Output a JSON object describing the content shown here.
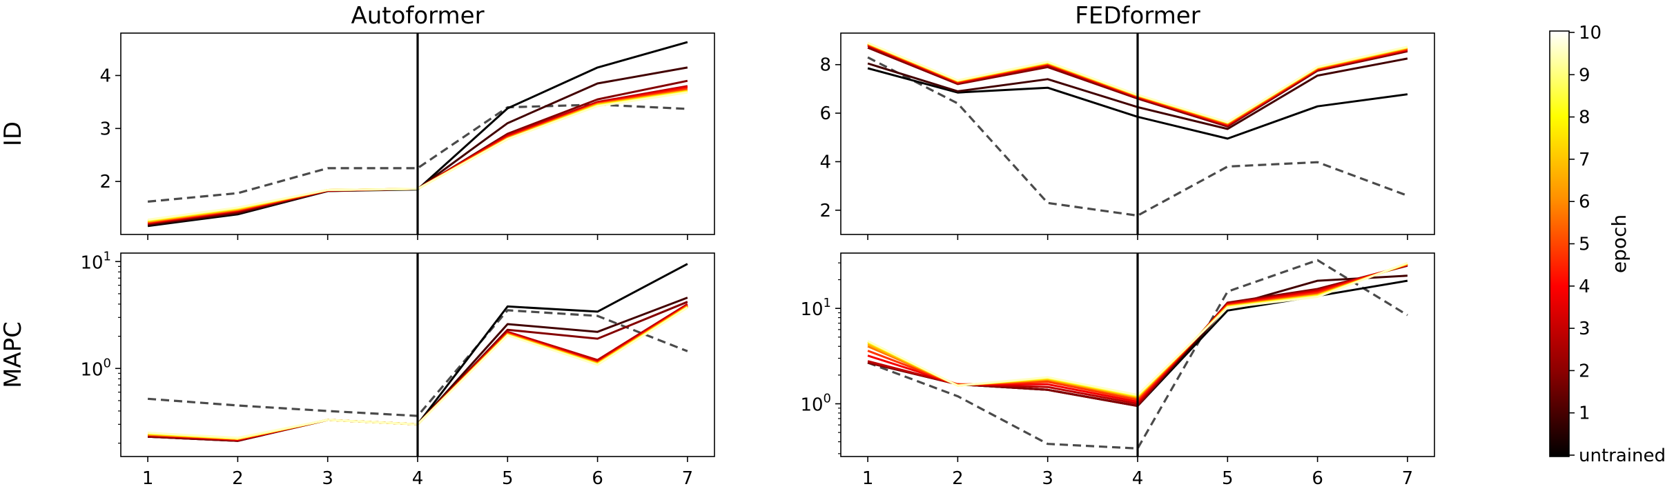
{
  "figure": {
    "colorbar": {
      "label": "epoch",
      "ticks": [
        "untrained",
        "1",
        "2",
        "3",
        "4",
        "5",
        "6",
        "7",
        "8",
        "9",
        "10"
      ],
      "colors": [
        "#000000",
        "#8b0000",
        "#ff0000",
        "#ff8c00",
        "#ffff00",
        "#ffffff"
      ]
    }
  },
  "chart_data": [
    {
      "type": "line",
      "title": "Autoformer",
      "ylabel": "ID",
      "x": [
        1,
        2,
        3,
        4,
        5,
        6,
        7
      ],
      "ylim": [
        1.0,
        4.8
      ],
      "yticks": [
        2,
        3,
        4
      ],
      "vline_x": 4,
      "series": [
        {
          "epoch": 0,
          "values": [
            1.16,
            1.38,
            1.82,
            1.85,
            3.38,
            4.15,
            4.63
          ]
        },
        {
          "epoch": 1,
          "values": [
            1.18,
            1.4,
            1.82,
            1.86,
            3.1,
            3.85,
            4.15
          ]
        },
        {
          "epoch": 2,
          "values": [
            1.2,
            1.42,
            1.83,
            1.86,
            2.9,
            3.55,
            3.9
          ]
        },
        {
          "epoch": 3,
          "values": [
            1.21,
            1.44,
            1.83,
            1.86,
            2.87,
            3.5,
            3.8
          ]
        },
        {
          "epoch": 4,
          "values": [
            1.22,
            1.45,
            1.83,
            1.86,
            2.85,
            3.48,
            3.78
          ]
        },
        {
          "epoch": 5,
          "values": [
            1.23,
            1.46,
            1.84,
            1.86,
            2.83,
            3.47,
            3.75
          ]
        },
        {
          "epoch": 6,
          "values": [
            1.24,
            1.47,
            1.84,
            1.86,
            2.82,
            3.46,
            3.72
          ]
        },
        {
          "epoch": 7,
          "values": [
            1.25,
            1.48,
            1.84,
            1.86,
            2.81,
            3.45,
            3.71
          ]
        },
        {
          "epoch": 8,
          "values": [
            1.26,
            1.49,
            1.84,
            1.86,
            2.8,
            3.44,
            3.7
          ]
        },
        {
          "epoch": 9,
          "values": [
            1.27,
            1.5,
            1.84,
            1.86,
            2.8,
            3.43,
            3.69
          ]
        },
        {
          "epoch": 10,
          "values": [
            1.28,
            1.51,
            1.84,
            1.86,
            2.8,
            3.42,
            3.68
          ]
        },
        {
          "epoch": "baseline",
          "dashed": true,
          "values": [
            1.62,
            1.78,
            2.25,
            2.25,
            3.4,
            3.45,
            3.37
          ]
        }
      ]
    },
    {
      "type": "line",
      "title": "FEDformer",
      "ylabel": "",
      "x": [
        1,
        2,
        3,
        4,
        5,
        6,
        7
      ],
      "ylim": [
        1.0,
        9.3
      ],
      "yticks": [
        2,
        4,
        6,
        8
      ],
      "vline_x": 4,
      "series": [
        {
          "epoch": 0,
          "values": [
            7.85,
            6.85,
            7.05,
            5.85,
            4.95,
            6.28,
            6.78
          ]
        },
        {
          "epoch": 1,
          "values": [
            8.05,
            6.9,
            7.4,
            6.25,
            5.35,
            7.55,
            8.25
          ]
        },
        {
          "epoch": 2,
          "values": [
            8.7,
            7.2,
            7.9,
            6.6,
            5.45,
            7.75,
            8.55
          ]
        },
        {
          "epoch": 3,
          "values": [
            8.78,
            7.25,
            7.98,
            6.65,
            5.5,
            7.8,
            8.6
          ]
        },
        {
          "epoch": 4,
          "values": [
            8.82,
            7.28,
            8.02,
            6.68,
            5.52,
            7.82,
            8.62
          ]
        },
        {
          "epoch": 5,
          "values": [
            8.84,
            7.3,
            8.04,
            6.7,
            5.55,
            7.84,
            8.65
          ]
        },
        {
          "epoch": 6,
          "values": [
            8.86,
            7.32,
            8.06,
            6.72,
            5.58,
            7.86,
            8.68
          ]
        },
        {
          "epoch": 7,
          "values": [
            8.87,
            7.33,
            8.08,
            6.73,
            5.6,
            7.88,
            8.7
          ]
        },
        {
          "epoch": 8,
          "values": [
            8.88,
            7.34,
            8.09,
            6.74,
            5.61,
            7.89,
            8.71
          ]
        },
        {
          "epoch": 9,
          "values": [
            8.89,
            7.35,
            8.1,
            6.75,
            5.62,
            7.9,
            8.72
          ]
        },
        {
          "epoch": 10,
          "values": [
            8.9,
            7.36,
            8.12,
            6.76,
            5.63,
            7.91,
            8.74
          ]
        },
        {
          "epoch": "baseline",
          "dashed": true,
          "values": [
            8.3,
            6.4,
            2.3,
            1.78,
            3.8,
            3.98,
            2.6
          ]
        }
      ]
    },
    {
      "type": "line",
      "ylabel": "MAPC",
      "x": [
        1,
        2,
        3,
        4,
        5,
        6,
        7
      ],
      "yscale": "log",
      "ylim": [
        0.15,
        12.0
      ],
      "yticks": [
        1,
        10
      ],
      "vline_x": 4,
      "series": [
        {
          "epoch": 0,
          "values": [
            0.23,
            0.21,
            0.33,
            0.3,
            3.8,
            3.4,
            9.5
          ]
        },
        {
          "epoch": 1,
          "values": [
            0.23,
            0.21,
            0.33,
            0.3,
            2.6,
            2.2,
            4.6
          ]
        },
        {
          "epoch": 2,
          "values": [
            0.23,
            0.21,
            0.33,
            0.3,
            2.3,
            1.9,
            4.2
          ]
        },
        {
          "epoch": 3,
          "values": [
            0.235,
            0.215,
            0.33,
            0.3,
            2.2,
            1.2,
            4.0
          ]
        },
        {
          "epoch": 4,
          "values": [
            0.24,
            0.215,
            0.33,
            0.3,
            2.15,
            1.15,
            3.9
          ]
        },
        {
          "epoch": 5,
          "values": [
            0.24,
            0.22,
            0.33,
            0.3,
            2.12,
            1.13,
            3.85
          ]
        },
        {
          "epoch": 6,
          "values": [
            0.24,
            0.22,
            0.33,
            0.3,
            2.1,
            1.12,
            3.8
          ]
        },
        {
          "epoch": 7,
          "values": [
            0.245,
            0.22,
            0.33,
            0.3,
            2.08,
            1.11,
            3.78
          ]
        },
        {
          "epoch": 8,
          "values": [
            0.245,
            0.22,
            0.33,
            0.3,
            2.06,
            1.1,
            3.75
          ]
        },
        {
          "epoch": 9,
          "values": [
            0.25,
            0.22,
            0.33,
            0.3,
            2.05,
            1.09,
            3.72
          ]
        },
        {
          "epoch": 10,
          "values": [
            0.25,
            0.225,
            0.33,
            0.3,
            2.04,
            1.08,
            3.7
          ]
        },
        {
          "epoch": "baseline",
          "dashed": true,
          "values": [
            0.52,
            0.45,
            0.4,
            0.36,
            3.5,
            3.1,
            1.45
          ]
        }
      ]
    },
    {
      "type": "line",
      "ylabel": "",
      "x": [
        1,
        2,
        3,
        4,
        5,
        6,
        7
      ],
      "yscale": "log",
      "ylim": [
        0.28,
        38.0
      ],
      "yticks": [
        1,
        10
      ],
      "vline_x": 4,
      "series": [
        {
          "epoch": 0,
          "values": [
            2.7,
            1.6,
            1.4,
            0.95,
            9.5,
            13.5,
            19.5
          ]
        },
        {
          "epoch": 1,
          "values": [
            2.7,
            1.6,
            1.4,
            0.95,
            10.5,
            19.5,
            22.0
          ]
        },
        {
          "epoch": 2,
          "values": [
            2.7,
            1.6,
            1.4,
            0.95,
            11.5,
            16.0,
            28.0
          ]
        },
        {
          "epoch": 3,
          "values": [
            2.8,
            1.6,
            1.5,
            1.0,
            11.2,
            15.5,
            28.5
          ]
        },
        {
          "epoch": 4,
          "values": [
            3.2,
            1.6,
            1.6,
            1.05,
            11.0,
            15.0,
            28.8
          ]
        },
        {
          "epoch": 5,
          "values": [
            3.6,
            1.58,
            1.7,
            1.1,
            10.8,
            14.5,
            29.0
          ]
        },
        {
          "epoch": 6,
          "values": [
            4.0,
            1.57,
            1.78,
            1.15,
            10.6,
            14.0,
            29.2
          ]
        },
        {
          "epoch": 7,
          "values": [
            4.2,
            1.56,
            1.82,
            1.18,
            10.5,
            13.8,
            29.4
          ]
        },
        {
          "epoch": 8,
          "values": [
            4.4,
            1.55,
            1.85,
            1.2,
            10.4,
            13.6,
            29.6
          ]
        },
        {
          "epoch": 9,
          "values": [
            4.5,
            1.55,
            1.88,
            1.22,
            10.3,
            13.4,
            29.8
          ]
        },
        {
          "epoch": 10,
          "values": [
            4.55,
            1.55,
            1.9,
            1.24,
            10.2,
            13.2,
            30.0
          ]
        },
        {
          "epoch": "baseline",
          "dashed": true,
          "values": [
            2.7,
            1.2,
            0.38,
            0.34,
            15.0,
            32.0,
            8.5
          ]
        }
      ]
    }
  ]
}
